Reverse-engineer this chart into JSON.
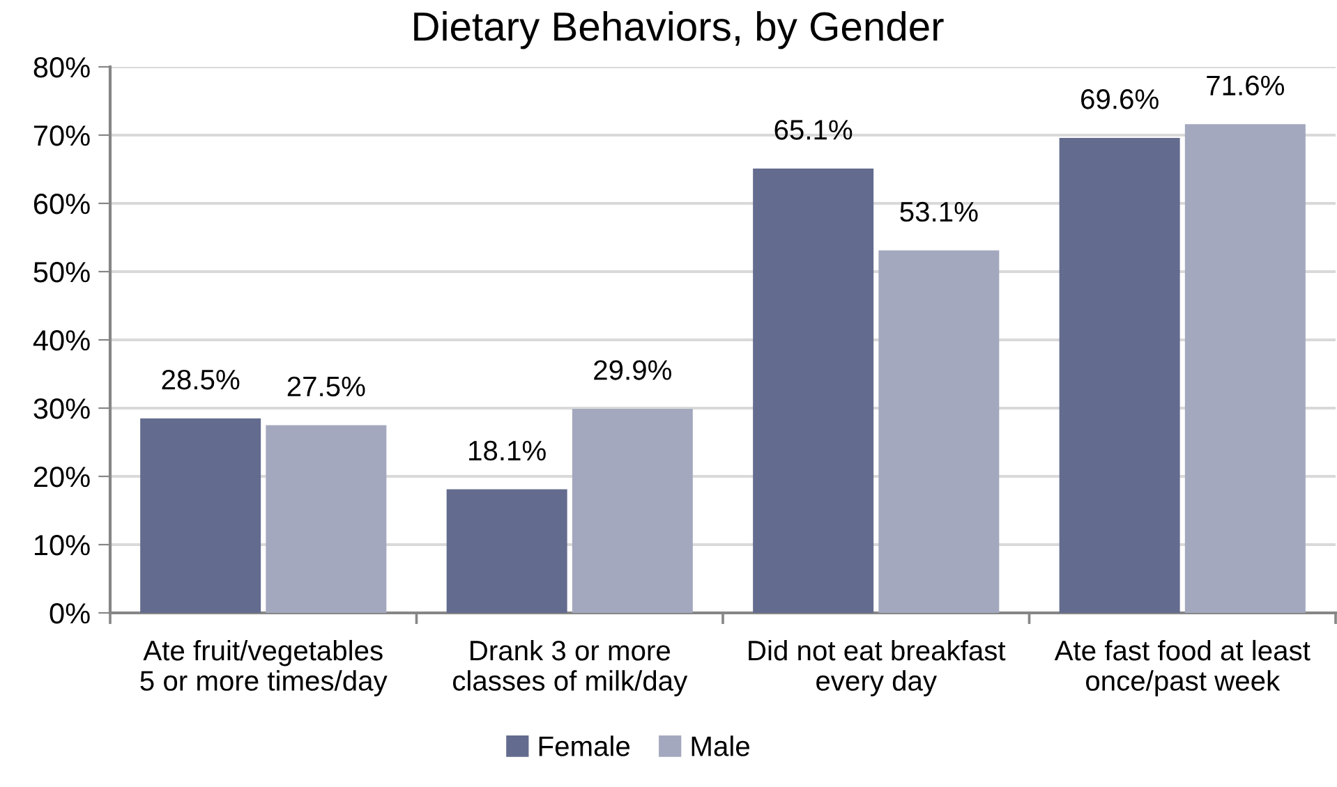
{
  "chart_data": {
    "type": "bar",
    "title": "Dietary Behaviors, by Gender",
    "categories": [
      "Ate fruit/vegetables\n5 or more times/day",
      "Drank 3 or more\nclasses of milk/day",
      "Did not eat breakfast\nevery day",
      "Ate fast food at least\nonce/past week"
    ],
    "series": [
      {
        "name": "Female",
        "color": "#636b8e",
        "values": [
          28.5,
          18.1,
          65.1,
          69.6
        ],
        "value_labels": [
          "28.5%",
          "18.1%",
          "65.1%",
          "69.6%"
        ]
      },
      {
        "name": "Male",
        "color": "#a3a8be",
        "values": [
          27.5,
          29.9,
          53.1,
          71.6
        ],
        "value_labels": [
          "27.5%",
          "29.9%",
          "53.1%",
          "71.6%"
        ]
      }
    ],
    "ylim": [
      0,
      80
    ],
    "yticks": [
      {
        "value": 0,
        "label": "0%"
      },
      {
        "value": 10,
        "label": "10%"
      },
      {
        "value": 20,
        "label": "20%"
      },
      {
        "value": 30,
        "label": "30%"
      },
      {
        "value": 40,
        "label": "40%"
      },
      {
        "value": 50,
        "label": "50%"
      },
      {
        "value": 60,
        "label": "60%"
      },
      {
        "value": 70,
        "label": "70%"
      },
      {
        "value": 80,
        "label": "80%"
      }
    ],
    "grid": "y",
    "legend": "bottom"
  }
}
